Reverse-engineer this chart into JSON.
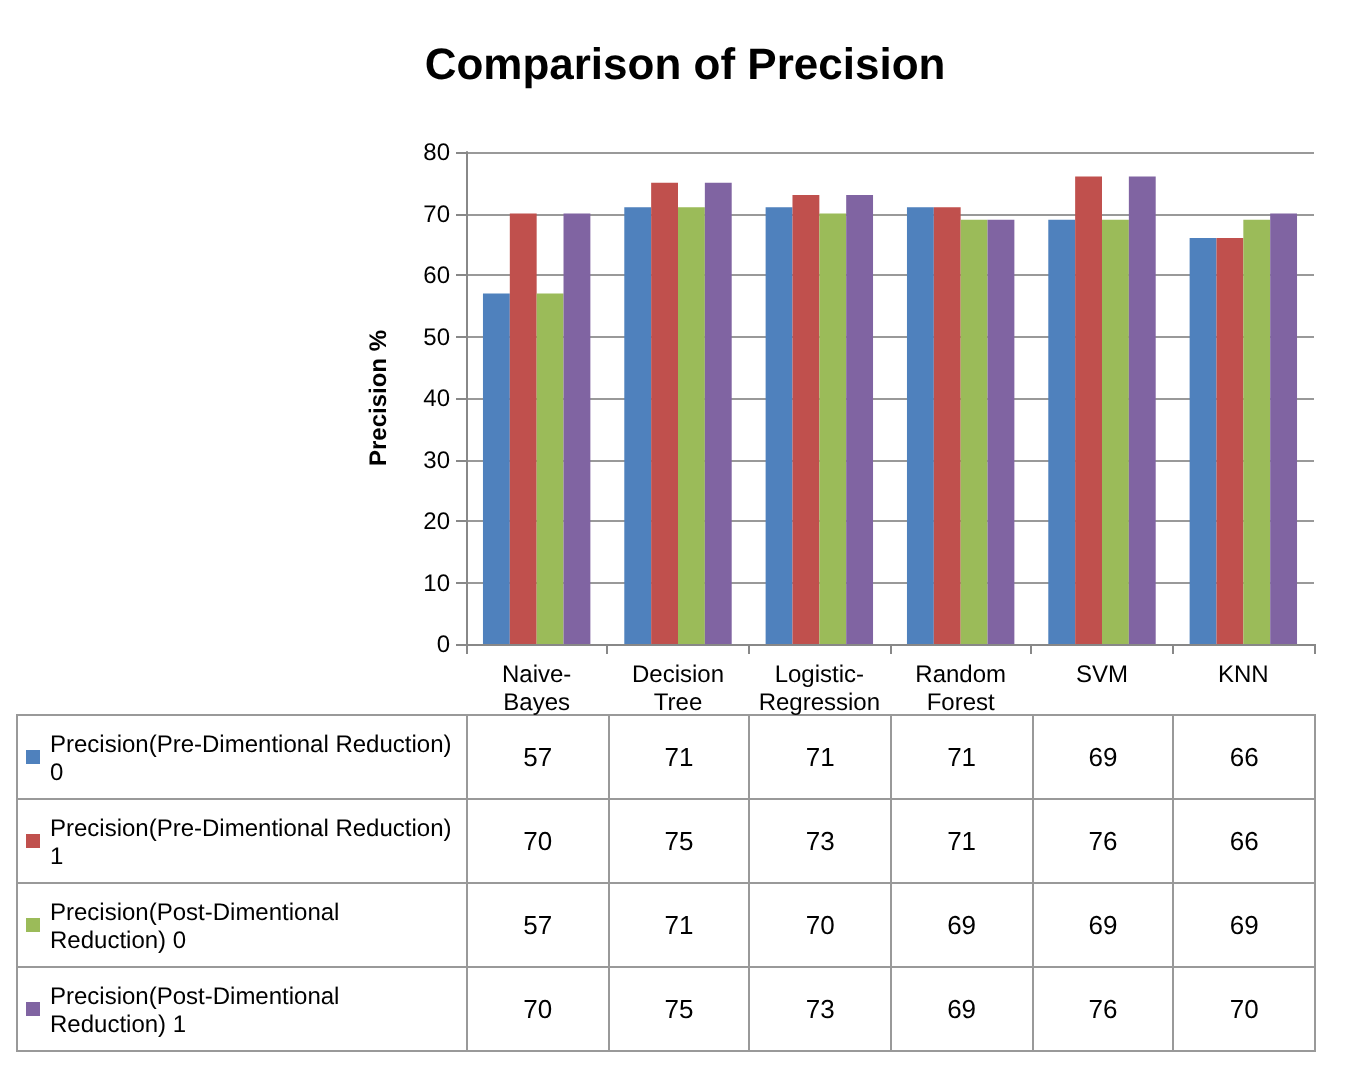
{
  "chart_data": {
    "type": "bar",
    "title": "Comparison of Precision",
    "ylabel": "Precision %",
    "categories": [
      "Naive-Bayes",
      "Decision Tree",
      "Logistic-Regression",
      "Random Forest",
      "SVM",
      "KNN"
    ],
    "series": [
      {
        "name": "Precision(Pre-Dimentional Reduction) 0",
        "color": "#4f81bd",
        "values": [
          57,
          71,
          71,
          71,
          69,
          66
        ]
      },
      {
        "name": "Precision(Pre-Dimentional Reduction) 1",
        "color": "#c0504d",
        "values": [
          70,
          75,
          73,
          71,
          76,
          66
        ]
      },
      {
        "name": "Precision(Post-Dimentional Reduction) 0",
        "color": "#9bbb59",
        "values": [
          57,
          71,
          70,
          69,
          69,
          69
        ]
      },
      {
        "name": "Precision(Post-Dimentional Reduction) 1",
        "color": "#8064a2",
        "values": [
          70,
          75,
          73,
          69,
          76,
          70
        ]
      }
    ],
    "ylim": [
      0,
      80
    ],
    "yticks": [
      0,
      10,
      20,
      30,
      40,
      50,
      60,
      70,
      80
    ],
    "grid": "y",
    "legend": "bottom",
    "data_labels": true
  }
}
